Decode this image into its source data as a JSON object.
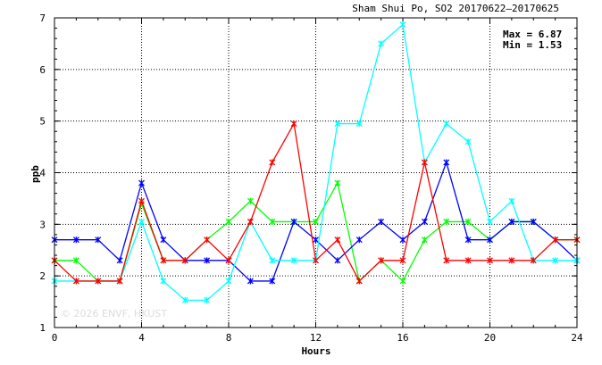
{
  "chart_data": {
    "type": "line",
    "title": "Sham Shui Po, SO2 20170622–20170625",
    "xlabel": "Hours",
    "ylabel": "ppb",
    "xlim": [
      0,
      24
    ],
    "ylim": [
      1,
      7
    ],
    "xticks": [
      0,
      4,
      8,
      12,
      16,
      20,
      24
    ],
    "yticks": [
      1,
      2,
      3,
      4,
      5,
      6,
      7
    ],
    "grid": true,
    "stats": {
      "max": "Max = 6.87",
      "min": "Min = 1.53"
    },
    "watermark": "© 2026  ENVF, HKUST",
    "x": [
      0,
      1,
      2,
      3,
      4,
      5,
      6,
      7,
      8,
      9,
      10,
      11,
      12,
      13,
      14,
      15,
      16,
      17,
      18,
      19,
      20,
      21,
      22,
      23,
      24
    ],
    "series": [
      {
        "color": "#00ff00",
        "values": [
          2.3,
          2.3,
          1.9,
          1.9,
          3.4,
          2.3,
          2.3,
          2.7,
          3.05,
          3.45,
          3.05,
          3.05,
          3.05,
          3.8,
          1.9,
          2.3,
          1.9,
          2.7,
          3.05,
          3.05,
          2.7,
          3.05,
          3.05,
          2.7,
          2.7
        ]
      },
      {
        "color": "#0000ff",
        "values": [
          2.7,
          2.7,
          2.7,
          2.3,
          3.8,
          2.7,
          2.3,
          2.3,
          2.3,
          1.9,
          1.9,
          3.05,
          2.7,
          2.3,
          2.7,
          3.05,
          2.7,
          3.05,
          4.2,
          2.7,
          2.7,
          3.05,
          3.05,
          2.7,
          2.3
        ]
      },
      {
        "color": "#00ffff",
        "values": [
          1.9,
          1.9,
          1.9,
          1.9,
          3.05,
          1.9,
          1.53,
          1.53,
          1.9,
          3.05,
          2.3,
          2.3,
          2.3,
          4.95,
          4.95,
          6.5,
          6.87,
          4.2,
          4.95,
          4.6,
          3.05,
          3.45,
          2.3,
          2.3,
          2.3
        ]
      },
      {
        "color": "#ff0000",
        "values": [
          2.3,
          1.9,
          1.9,
          1.9,
          3.45,
          2.3,
          2.3,
          2.7,
          2.3,
          3.05,
          4.2,
          4.95,
          2.3,
          2.7,
          1.9,
          2.3,
          2.3,
          4.2,
          2.3,
          2.3,
          2.3,
          2.3,
          2.3,
          2.7,
          2.7
        ]
      }
    ]
  }
}
